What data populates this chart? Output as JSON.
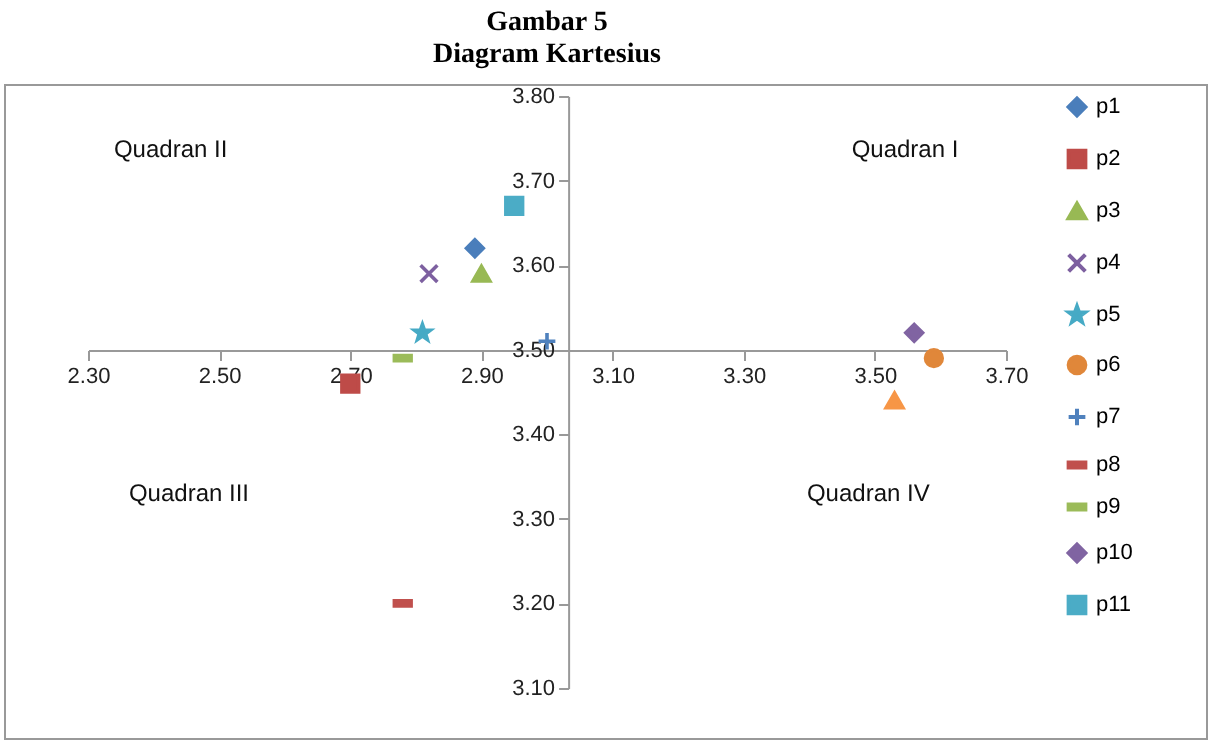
{
  "chart_data": {
    "type": "scatter",
    "title": "Gambar 5",
    "subtitle": "Diagram Kartesius",
    "xlim": [
      2.3,
      3.7
    ],
    "xticks": [
      {
        "value": 2.3,
        "label": "2.30"
      },
      {
        "value": 2.5,
        "label": "2.50"
      },
      {
        "value": 2.7,
        "label": "2.70"
      },
      {
        "value": 2.9,
        "label": "2.90"
      },
      {
        "value": 3.1,
        "label": "3.10"
      },
      {
        "value": 3.3,
        "label": "3.30"
      },
      {
        "value": 3.5,
        "label": "3.50"
      },
      {
        "value": 3.7,
        "label": "3.70"
      }
    ],
    "ylim": [
      3.1,
      3.8
    ],
    "yticks": [
      {
        "value": 3.1,
        "label": "3.10"
      },
      {
        "value": 3.2,
        "label": "3.20"
      },
      {
        "value": 3.3,
        "label": "3.30"
      },
      {
        "value": 3.4,
        "label": "3.40"
      },
      {
        "value": 3.5,
        "label": "3.50"
      },
      {
        "value": 3.6,
        "label": "3.60"
      },
      {
        "value": 3.7,
        "label": "3.70"
      },
      {
        "value": 3.8,
        "label": "3.80"
      }
    ],
    "grid": false,
    "legend": "right",
    "annotations": [
      "Quadran II",
      "Quadran I",
      "Quadran III",
      "Quadran IV"
    ],
    "series": [
      {
        "name": "p1",
        "color": "#4a7ebb",
        "marker": "diamond",
        "x": [
          2.89
        ],
        "values": [
          3.62
        ]
      },
      {
        "name": "p2",
        "color": "#be4b48",
        "marker": "square",
        "x": [
          2.7
        ],
        "values": [
          3.46
        ]
      },
      {
        "name": "p3",
        "color": "#98b954",
        "marker": "triangle",
        "x": [
          2.9
        ],
        "values": [
          3.59
        ]
      },
      {
        "name": "p4",
        "color": "#7d60a0",
        "marker": "cross",
        "x": [
          2.82
        ],
        "values": [
          3.59
        ]
      },
      {
        "name": "p5",
        "color": "#46aac5",
        "marker": "star",
        "x": [
          2.81
        ],
        "values": [
          3.52
        ]
      },
      {
        "name": "p6",
        "color": "#e0873a",
        "marker": "circle",
        "x": [
          3.59
        ],
        "values": [
          3.49
        ]
      },
      {
        "name": "p7",
        "color": "#4f81bd",
        "marker": "plus",
        "x": [
          3.0
        ],
        "values": [
          3.51
        ]
      },
      {
        "name": "p8",
        "color": "#c0504d",
        "x": [
          2.78
        ],
        "values": [
          3.2
        ]
      },
      {
        "name": "p9",
        "color": "#9bbb59",
        "x": [
          2.78
        ],
        "values": [
          3.49
        ]
      },
      {
        "name": "p10",
        "color": "#8064a2",
        "marker": "diamond",
        "x": [
          3.56
        ],
        "values": [
          3.52
        ]
      },
      {
        "name": "p11",
        "color": "#4bacc6",
        "marker": "square",
        "x": [
          2.95
        ],
        "values": [
          3.67
        ]
      },
      {
        "color": "#f79646",
        "marker": "triangle",
        "x": [
          3.53
        ],
        "values": [
          3.44
        ]
      }
    ]
  }
}
